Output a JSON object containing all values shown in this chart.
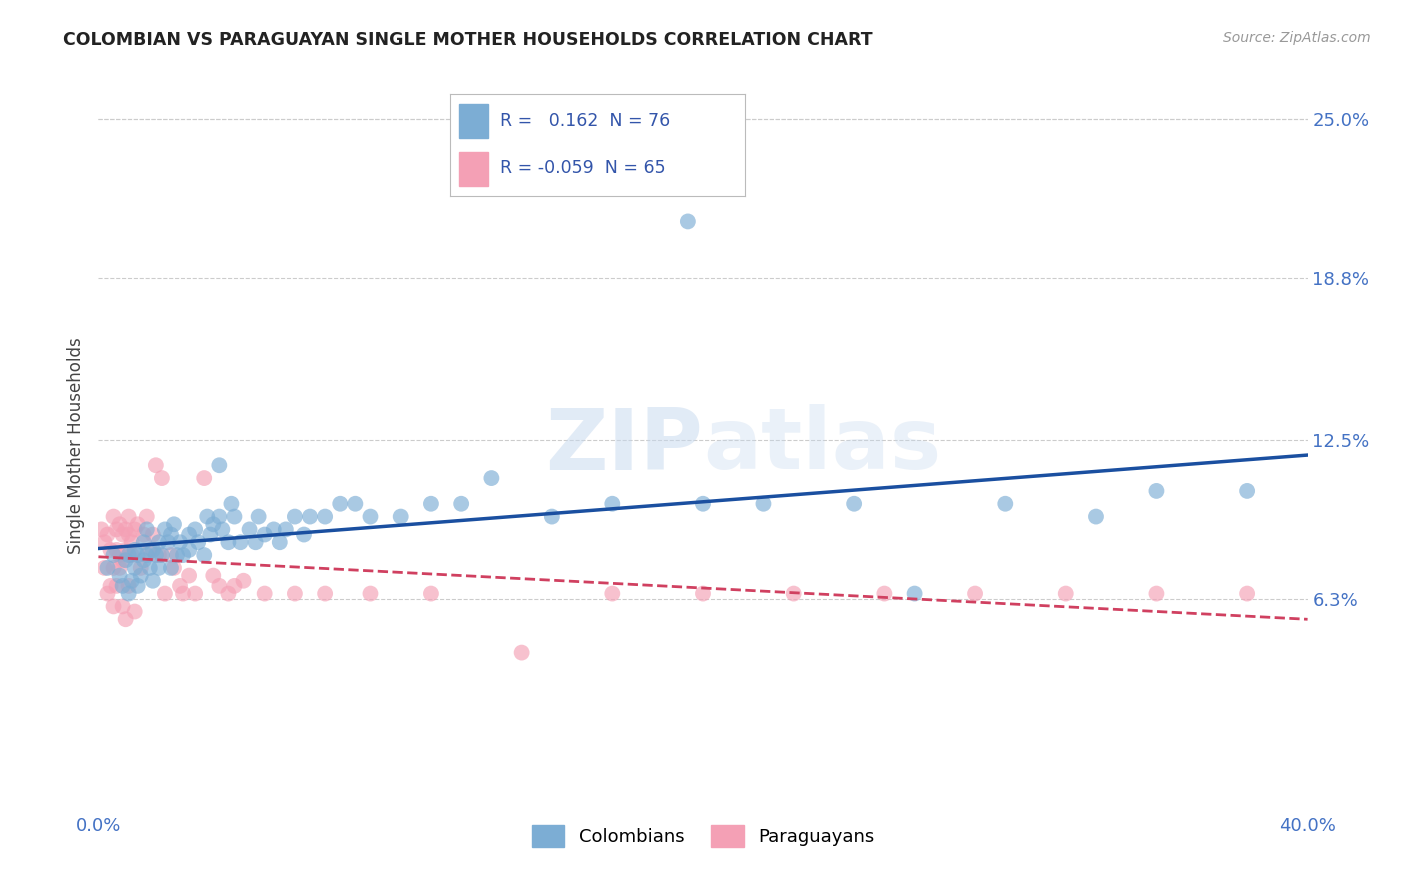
{
  "title": "COLOMBIAN VS PARAGUAYAN SINGLE MOTHER HOUSEHOLDS CORRELATION CHART",
  "source": "Source: ZipAtlas.com",
  "ylabel": "Single Mother Households",
  "xlim": [
    0.0,
    0.4
  ],
  "ylim": [
    -0.02,
    0.265
  ],
  "xticks": [
    0.0,
    0.1,
    0.2,
    0.3,
    0.4
  ],
  "xtick_labels": [
    "0.0%",
    "",
    "",
    "",
    "40.0%"
  ],
  "ytick_positions": [
    0.063,
    0.125,
    0.188,
    0.25
  ],
  "ytick_labels": [
    "6.3%",
    "12.5%",
    "18.8%",
    "25.0%"
  ],
  "colombian_R": 0.162,
  "colombian_N": 76,
  "paraguayan_R": -0.059,
  "paraguayan_N": 65,
  "colombian_color": "#7cadd4",
  "paraguayan_color": "#f4a0b5",
  "trendline_colombian_color": "#1a4fa0",
  "trendline_paraguayan_color": "#d04060",
  "watermark_zip": "ZIP",
  "watermark_atlas": "atlas",
  "background_color": "#ffffff",
  "grid_color": "#cccccc",
  "legend_label_colombians": "Colombians",
  "legend_label_paraguayans": "Paraguayans",
  "colombian_x": [
    0.003,
    0.005,
    0.007,
    0.008,
    0.009,
    0.01,
    0.01,
    0.011,
    0.012,
    0.012,
    0.013,
    0.013,
    0.014,
    0.015,
    0.015,
    0.016,
    0.016,
    0.017,
    0.018,
    0.018,
    0.019,
    0.02,
    0.02,
    0.021,
    0.022,
    0.023,
    0.024,
    0.024,
    0.025,
    0.026,
    0.027,
    0.028,
    0.03,
    0.03,
    0.032,
    0.033,
    0.035,
    0.036,
    0.037,
    0.038,
    0.04,
    0.041,
    0.043,
    0.044,
    0.045,
    0.047,
    0.05,
    0.052,
    0.053,
    0.055,
    0.058,
    0.06,
    0.062,
    0.065,
    0.068,
    0.07,
    0.075,
    0.08,
    0.085,
    0.09,
    0.1,
    0.11,
    0.12,
    0.13,
    0.15,
    0.17,
    0.2,
    0.22,
    0.25,
    0.27,
    0.3,
    0.33,
    0.35,
    0.38,
    0.195,
    0.04
  ],
  "colombian_y": [
    0.075,
    0.08,
    0.072,
    0.068,
    0.078,
    0.08,
    0.065,
    0.07,
    0.075,
    0.082,
    0.068,
    0.08,
    0.072,
    0.085,
    0.078,
    0.08,
    0.09,
    0.075,
    0.082,
    0.07,
    0.08,
    0.085,
    0.075,
    0.08,
    0.09,
    0.085,
    0.088,
    0.075,
    0.092,
    0.08,
    0.085,
    0.08,
    0.088,
    0.082,
    0.09,
    0.085,
    0.08,
    0.095,
    0.088,
    0.092,
    0.095,
    0.09,
    0.085,
    0.1,
    0.095,
    0.085,
    0.09,
    0.085,
    0.095,
    0.088,
    0.09,
    0.085,
    0.09,
    0.095,
    0.088,
    0.095,
    0.095,
    0.1,
    0.1,
    0.095,
    0.095,
    0.1,
    0.1,
    0.11,
    0.095,
    0.1,
    0.1,
    0.1,
    0.1,
    0.065,
    0.1,
    0.095,
    0.105,
    0.105,
    0.21,
    0.115
  ],
  "paraguayan_x": [
    0.001,
    0.002,
    0.003,
    0.004,
    0.005,
    0.005,
    0.006,
    0.006,
    0.007,
    0.007,
    0.008,
    0.008,
    0.009,
    0.009,
    0.01,
    0.01,
    0.011,
    0.011,
    0.012,
    0.013,
    0.014,
    0.015,
    0.016,
    0.017,
    0.018,
    0.019,
    0.02,
    0.021,
    0.022,
    0.024,
    0.025,
    0.027,
    0.028,
    0.03,
    0.032,
    0.035,
    0.038,
    0.04,
    0.043,
    0.045,
    0.048,
    0.055,
    0.065,
    0.075,
    0.09,
    0.11,
    0.14,
    0.17,
    0.2,
    0.23,
    0.26,
    0.29,
    0.32,
    0.35,
    0.38,
    0.002,
    0.003,
    0.004,
    0.005,
    0.006,
    0.007,
    0.008,
    0.009,
    0.01,
    0.012
  ],
  "paraguayan_y": [
    0.09,
    0.085,
    0.088,
    0.082,
    0.095,
    0.075,
    0.09,
    0.082,
    0.08,
    0.092,
    0.088,
    0.078,
    0.09,
    0.082,
    0.088,
    0.095,
    0.085,
    0.08,
    0.09,
    0.092,
    0.075,
    0.088,
    0.095,
    0.082,
    0.088,
    0.115,
    0.08,
    0.11,
    0.065,
    0.08,
    0.075,
    0.068,
    0.065,
    0.072,
    0.065,
    0.11,
    0.072,
    0.068,
    0.065,
    0.068,
    0.07,
    0.065,
    0.065,
    0.065,
    0.065,
    0.065,
    0.042,
    0.065,
    0.065,
    0.065,
    0.065,
    0.065,
    0.065,
    0.065,
    0.065,
    0.075,
    0.065,
    0.068,
    0.06,
    0.068,
    0.075,
    0.06,
    0.055,
    0.068,
    0.058
  ]
}
